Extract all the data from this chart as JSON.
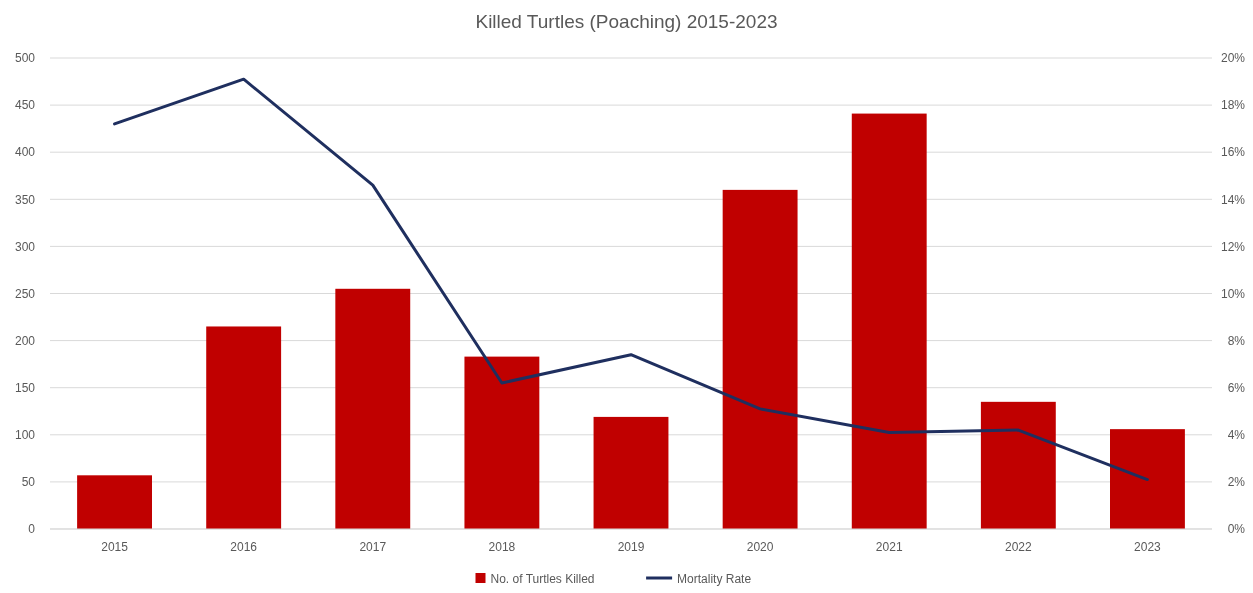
{
  "chart_data": {
    "type": "bar",
    "title": "Killed Turtles (Poaching) 2015-2023",
    "categories": [
      "2015",
      "2016",
      "2017",
      "2018",
      "2019",
      "2020",
      "2021",
      "2022",
      "2023"
    ],
    "series": [
      {
        "name": "No. of Turtles Killed",
        "color": "#c00000",
        "values": [
          57,
          215,
          255,
          183,
          119,
          360,
          441,
          135,
          106
        ]
      },
      {
        "name": "Mortality Rate",
        "type": "line",
        "axis": "y2",
        "color": "#1f2f5f",
        "values": [
          17.2,
          19.1,
          14.6,
          6.2,
          7.4,
          5.1,
          4.1,
          4.2,
          2.1
        ]
      }
    ],
    "ylim": [
      0,
      500
    ],
    "yticks": [
      0,
      50,
      100,
      150,
      200,
      250,
      300,
      350,
      400,
      450,
      500
    ],
    "y2lim": [
      0,
      20
    ],
    "y2ticks": [
      {
        "value": 0,
        "label": "0%"
      },
      {
        "value": 2,
        "label": "2%"
      },
      {
        "value": 4,
        "label": "4%"
      },
      {
        "value": 6,
        "label": "6%"
      },
      {
        "value": 8,
        "label": "8%"
      },
      {
        "value": 10,
        "label": "10%"
      },
      {
        "value": 12,
        "label": "12%"
      },
      {
        "value": 14,
        "label": "14%"
      },
      {
        "value": 16,
        "label": "16%"
      },
      {
        "value": 18,
        "label": "18%"
      },
      {
        "value": 20,
        "label": "20%"
      }
    ],
    "grid": "y",
    "legend": "bottom"
  }
}
